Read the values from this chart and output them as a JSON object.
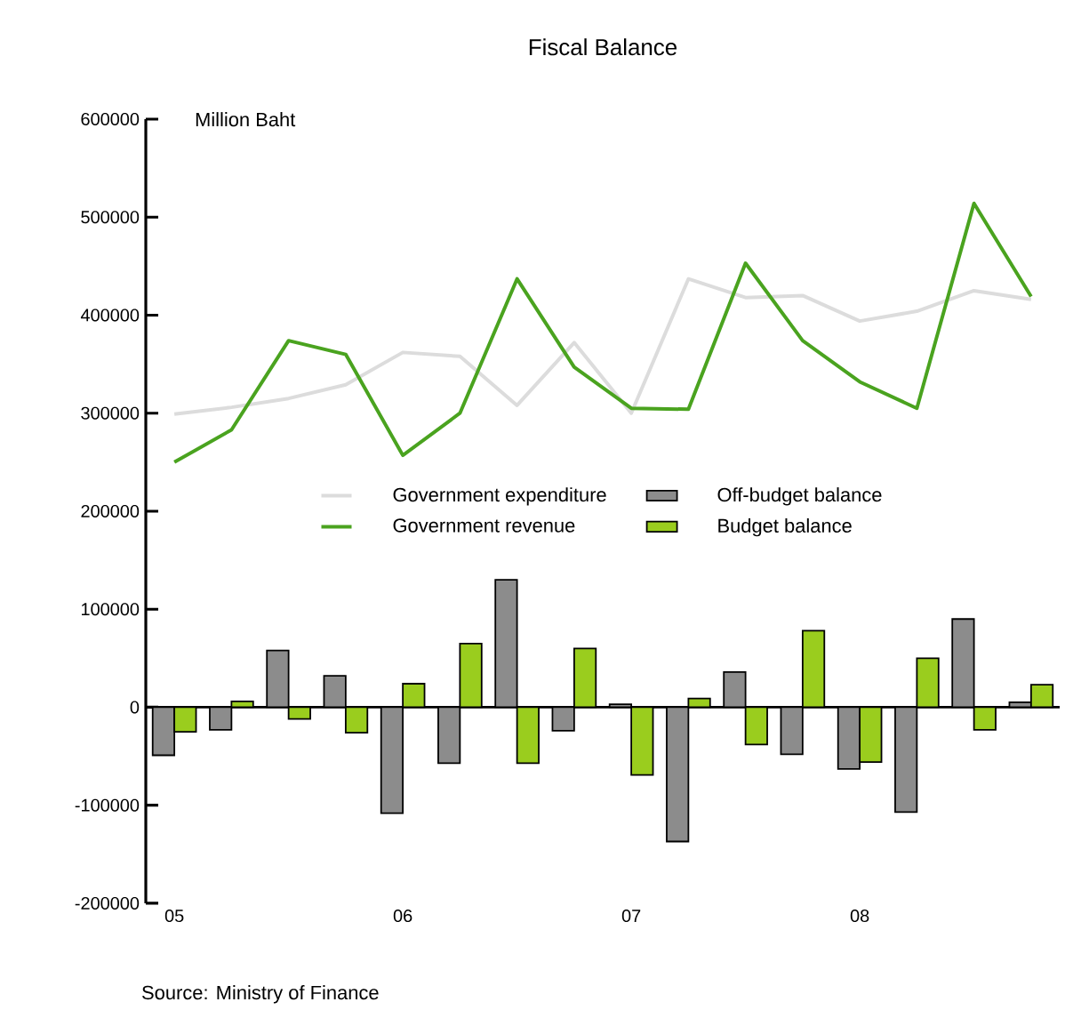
{
  "chart_data": {
    "type": "bar",
    "title": "Fiscal Balance",
    "ylabel": "Million Baht",
    "categories": [
      "05",
      null,
      null,
      null,
      "06",
      null,
      null,
      null,
      "07",
      null,
      null,
      null,
      "08",
      null,
      null,
      null
    ],
    "series": [
      {
        "name": "Government expenditure",
        "type": "line",
        "color": "#dcdcdc",
        "values": [
          299000,
          306000,
          315000,
          329000,
          362000,
          358000,
          308000,
          372000,
          300000,
          437000,
          418000,
          420000,
          394000,
          404000,
          425000,
          416000
        ]
      },
      {
        "name": "Government revenue",
        "type": "line",
        "color": "#4aa31f",
        "values": [
          250000,
          283000,
          374000,
          360000,
          257000,
          300000,
          437000,
          347000,
          305000,
          304000,
          453000,
          374000,
          332000,
          305000,
          514000,
          419000
        ]
      },
      {
        "name": "Off-budget balance",
        "color": "#8c8c8c",
        "values": [
          -49000,
          -23000,
          58000,
          32000,
          -108000,
          -57000,
          130000,
          -24000,
          3000,
          -137000,
          36000,
          -48000,
          -63000,
          -107000,
          90000,
          5000
        ]
      },
      {
        "name": "Budget balance",
        "color": "#9acd1e",
        "values": [
          -25000,
          6000,
          -12000,
          -26000,
          24000,
          65000,
          -57000,
          60000,
          -69000,
          9000,
          -38000,
          78000,
          -56000,
          50000,
          -23000,
          23000
        ]
      }
    ],
    "ylim": [
      -200000,
      600000
    ],
    "yticks": [
      -200000,
      -100000,
      0,
      100000,
      200000,
      300000,
      400000,
      500000,
      600000
    ],
    "ref_lines": [
      {
        "axis": "y",
        "value": 0
      }
    ],
    "legend": "center",
    "annotations": [
      "Source: Ministry of Finance"
    ]
  }
}
